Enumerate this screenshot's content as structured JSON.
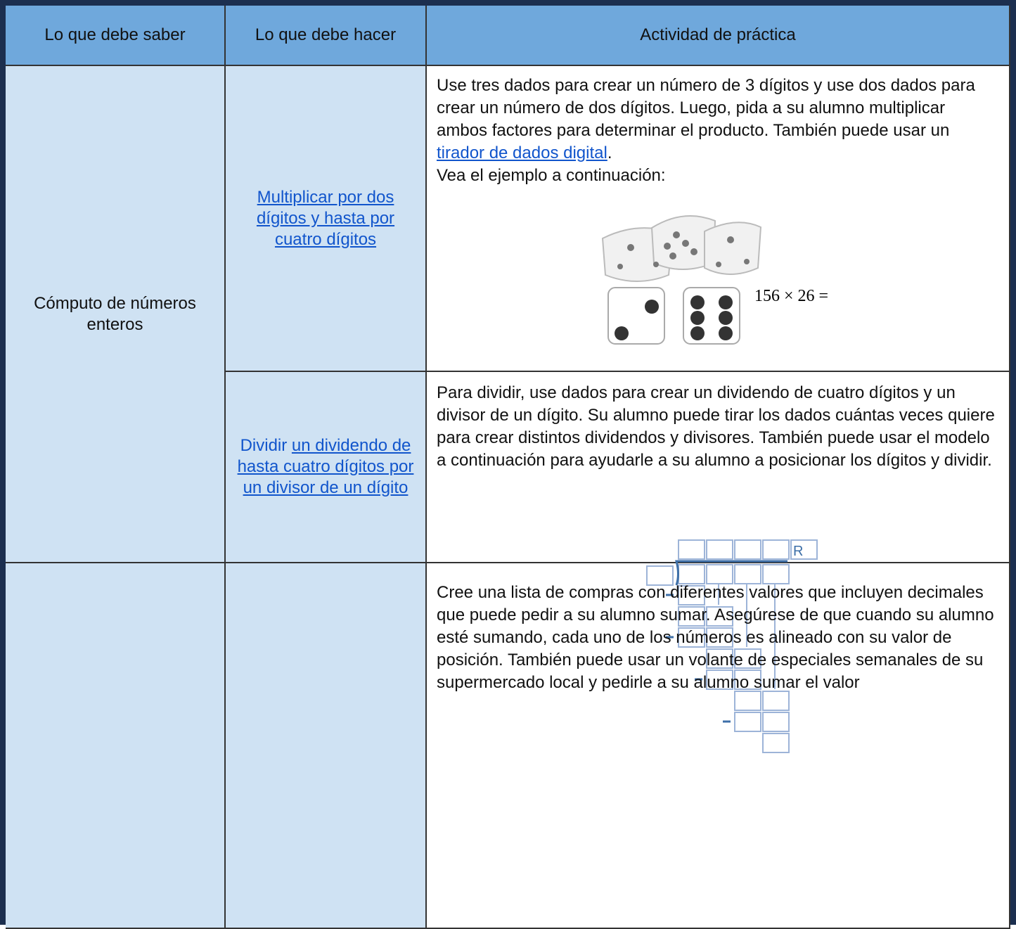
{
  "table": {
    "headers": [
      "Lo que debe saber",
      "Lo que debe hacer",
      "Actividad de práctica"
    ],
    "topic": "Cómputo de números enteros",
    "rows": [
      {
        "skill_link": "Multiplicar por dos dígitos y hasta por cuatro dígitos",
        "activity_text": "Use tres dados para crear un número de 3 dígitos y use dos dados para crear un número de dos dígitos. Luego, pida a su alumno multiplicar ambos factores para determinar el producto. También puede usar un ",
        "activity_link": "tirador de dados digital",
        "activity_after": ".",
        "activity_note": "Vea el ejemplo a continuación:",
        "equation": "156 × 26 ="
      },
      {
        "skill_prefix": "Dividir ",
        "skill_link": "un dividendo de hasta cuatro dígitos por un divisor de un dígito",
        "activity_text": "Para dividir, use dados para crear un dividendo de cuatro dígitos y un divisor de un dígito. Su alumno puede tirar los dados cuántas veces quiere para crear distintos dividendos y divisores. También puede usar el modelo a continuación para ayudarle a su alumno a posicionar los dígitos y dividir.",
        "remainder_label": "R"
      },
      {
        "activity_text": "Cree una lista de compras con diferentes valores que incluyen decimales que puede pedir a su alumno sumar. Asegúrese de que cuando su alumno esté sumando, cada uno de los números es alineado con su valor de posición. También puede usar un volante de especiales semanales de su supermercado local y pedirle a su alumno sumar el valor"
      }
    ]
  }
}
